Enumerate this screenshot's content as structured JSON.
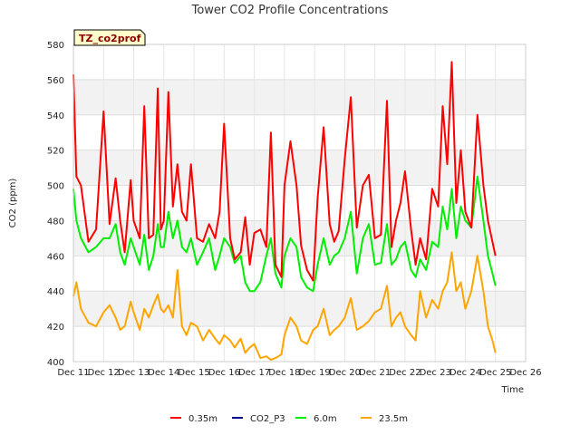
{
  "chart_data": {
    "type": "line",
    "title": "Tower CO2 Profile Concentrations",
    "xlabel": "Time",
    "ylabel": "CO2 (ppm)",
    "ylim": [
      400,
      580
    ],
    "xlim": [
      11,
      26
    ],
    "yticks": [
      400,
      420,
      440,
      460,
      480,
      500,
      520,
      540,
      560,
      580
    ],
    "xticks": [
      {
        "x": 11,
        "label": "Dec 11"
      },
      {
        "x": 12,
        "label": "Dec 12"
      },
      {
        "x": 13,
        "label": "Dec 13"
      },
      {
        "x": 14,
        "label": "Dec 14"
      },
      {
        "x": 15,
        "label": "Dec 15"
      },
      {
        "x": 16,
        "label": "Dec 16"
      },
      {
        "x": 17,
        "label": "Dec 17"
      },
      {
        "x": 18,
        "label": "Dec 18"
      },
      {
        "x": 19,
        "label": "Dec 19"
      },
      {
        "x": 20,
        "label": "Dec 20"
      },
      {
        "x": 21,
        "label": "Dec 21"
      },
      {
        "x": 22,
        "label": "Dec 22"
      },
      {
        "x": 23,
        "label": "Dec 23"
      },
      {
        "x": 24,
        "label": "Dec 24"
      },
      {
        "x": 25,
        "label": "Dec 25"
      },
      {
        "x": 26,
        "label": "Dec 26"
      }
    ],
    "grid": true,
    "legend_position": "bottom",
    "tag": "TZ_co2prof",
    "series": [
      {
        "name": "0.35m",
        "color": "#ff0000",
        "x": [
          11.0,
          11.1,
          11.25,
          11.5,
          11.75,
          12.0,
          12.2,
          12.4,
          12.55,
          12.7,
          12.9,
          13.0,
          13.2,
          13.35,
          13.5,
          13.65,
          13.8,
          13.9,
          14.0,
          14.15,
          14.3,
          14.45,
          14.6,
          14.75,
          14.9,
          15.1,
          15.3,
          15.5,
          15.7,
          15.85,
          16.0,
          16.2,
          16.35,
          16.55,
          16.7,
          16.85,
          17.0,
          17.2,
          17.4,
          17.55,
          17.7,
          17.9,
          18.0,
          18.2,
          18.4,
          18.55,
          18.75,
          18.95,
          19.1,
          19.3,
          19.5,
          19.65,
          19.8,
          20.0,
          20.2,
          20.4,
          20.6,
          20.8,
          21.0,
          21.2,
          21.4,
          21.55,
          21.7,
          21.85,
          22.0,
          22.2,
          22.35,
          22.5,
          22.7,
          22.9,
          23.1,
          23.25,
          23.4,
          23.55,
          23.7,
          23.85,
          24.0,
          24.2,
          24.4,
          24.6,
          24.75,
          24.9,
          25.0
        ],
        "values": [
          563,
          505,
          500,
          468,
          475,
          542,
          478,
          504,
          480,
          462,
          503,
          480,
          470,
          545,
          470,
          472,
          555,
          475,
          480,
          553,
          488,
          512,
          485,
          480,
          512,
          470,
          468,
          478,
          470,
          485,
          535,
          470,
          458,
          462,
          482,
          455,
          473,
          475,
          465,
          530,
          455,
          448,
          500,
          525,
          500,
          466,
          452,
          446,
          493,
          533,
          478,
          468,
          474,
          515,
          550,
          476,
          500,
          506,
          470,
          472,
          548,
          465,
          480,
          490,
          508,
          475,
          455,
          470,
          458,
          498,
          488,
          545,
          512,
          570,
          490,
          520,
          485,
          476,
          540,
          500,
          480,
          468,
          460
        ]
      },
      {
        "name": "CO2_P3",
        "color": "#00008b",
        "x": [],
        "values": []
      },
      {
        "name": "6.0m",
        "color": "#00ee00",
        "x": [
          11.0,
          11.1,
          11.25,
          11.5,
          11.75,
          12.0,
          12.2,
          12.4,
          12.55,
          12.7,
          12.9,
          13.0,
          13.2,
          13.35,
          13.5,
          13.65,
          13.8,
          13.9,
          14.0,
          14.15,
          14.3,
          14.45,
          14.6,
          14.75,
          14.9,
          15.1,
          15.3,
          15.5,
          15.7,
          15.85,
          16.0,
          16.2,
          16.35,
          16.55,
          16.7,
          16.85,
          17.0,
          17.2,
          17.4,
          17.55,
          17.7,
          17.9,
          18.0,
          18.2,
          18.4,
          18.55,
          18.75,
          18.95,
          19.1,
          19.3,
          19.5,
          19.65,
          19.8,
          20.0,
          20.2,
          20.4,
          20.6,
          20.8,
          21.0,
          21.2,
          21.4,
          21.55,
          21.7,
          21.85,
          22.0,
          22.2,
          22.35,
          22.5,
          22.7,
          22.9,
          23.1,
          23.25,
          23.4,
          23.55,
          23.7,
          23.85,
          24.0,
          24.2,
          24.4,
          24.6,
          24.75,
          24.9,
          25.0
        ],
        "values": [
          498,
          480,
          470,
          462,
          465,
          470,
          470,
          478,
          462,
          455,
          470,
          465,
          455,
          472,
          452,
          460,
          478,
          465,
          465,
          485,
          470,
          480,
          465,
          462,
          470,
          455,
          462,
          470,
          452,
          460,
          470,
          465,
          456,
          460,
          445,
          440,
          440,
          445,
          460,
          470,
          450,
          442,
          460,
          470,
          465,
          448,
          442,
          440,
          455,
          470,
          455,
          460,
          462,
          470,
          485,
          450,
          470,
          478,
          455,
          456,
          478,
          455,
          458,
          465,
          468,
          452,
          448,
          458,
          452,
          468,
          465,
          488,
          475,
          498,
          470,
          488,
          480,
          476,
          505,
          480,
          460,
          450,
          443
        ]
      },
      {
        "name": "23.5m",
        "color": "#ffa500",
        "x": [
          11.0,
          11.1,
          11.25,
          11.5,
          11.75,
          12.0,
          12.2,
          12.4,
          12.55,
          12.7,
          12.9,
          13.0,
          13.2,
          13.35,
          13.5,
          13.65,
          13.8,
          13.9,
          14.0,
          14.15,
          14.3,
          14.45,
          14.6,
          14.75,
          14.9,
          15.1,
          15.3,
          15.5,
          15.7,
          15.85,
          16.0,
          16.2,
          16.35,
          16.55,
          16.7,
          16.85,
          17.0,
          17.2,
          17.4,
          17.55,
          17.7,
          17.9,
          18.0,
          18.2,
          18.4,
          18.55,
          18.75,
          18.95,
          19.1,
          19.3,
          19.5,
          19.65,
          19.8,
          20.0,
          20.2,
          20.4,
          20.6,
          20.8,
          21.0,
          21.2,
          21.4,
          21.55,
          21.7,
          21.85,
          22.0,
          22.2,
          22.35,
          22.5,
          22.7,
          22.9,
          23.1,
          23.25,
          23.4,
          23.55,
          23.7,
          23.85,
          24.0,
          24.2,
          24.4,
          24.6,
          24.75,
          24.9,
          25.0
        ],
        "values": [
          437,
          445,
          430,
          422,
          420,
          428,
          432,
          425,
          418,
          420,
          434,
          428,
          418,
          430,
          425,
          432,
          438,
          430,
          428,
          432,
          425,
          452,
          420,
          415,
          422,
          420,
          412,
          418,
          413,
          410,
          415,
          412,
          408,
          413,
          405,
          408,
          410,
          402,
          403,
          401,
          402,
          404,
          415,
          425,
          420,
          412,
          410,
          418,
          420,
          430,
          415,
          418,
          420,
          425,
          436,
          418,
          420,
          423,
          428,
          430,
          443,
          420,
          425,
          428,
          420,
          415,
          412,
          440,
          425,
          435,
          430,
          440,
          445,
          462,
          440,
          445,
          430,
          440,
          460,
          440,
          420,
          412,
          405
        ]
      }
    ]
  }
}
